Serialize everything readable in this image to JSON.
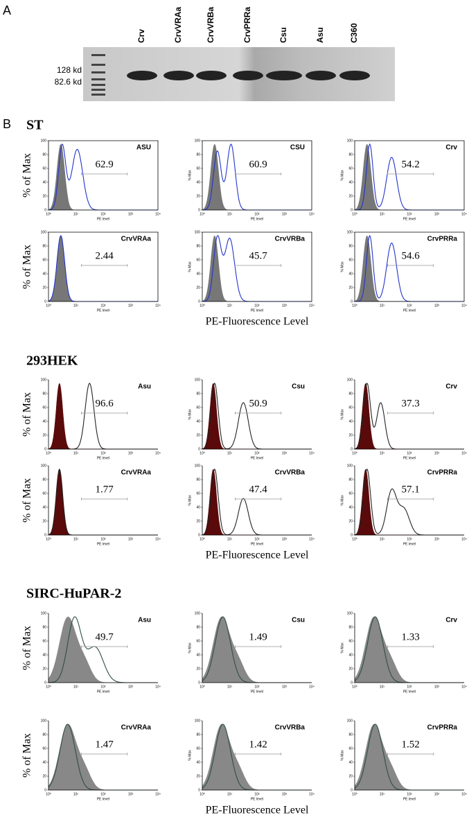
{
  "panel_a": {
    "label": "A",
    "lanes": [
      "Crv",
      "CrvVRAa",
      "CrvVRBa",
      "CrvPRRa",
      "Csu",
      "Asu",
      "C360"
    ],
    "markers": [
      "128 kd",
      "82.6 kd"
    ]
  },
  "panel_b": {
    "label": "B",
    "y_axis_title": "% of Max",
    "x_axis_title": "PE-Fluorescence Level",
    "small_y_title": "% Max",
    "small_x_title": "PE level",
    "yticks": [
      0,
      20,
      40,
      60,
      80,
      100
    ],
    "xticks": [
      "10⁰",
      "10¹",
      "10²",
      "10³",
      "10⁴"
    ],
    "groups": [
      {
        "name": "ST",
        "panels": [
          {
            "sample": "ASU",
            "percent": 62.9
          },
          {
            "sample": "CSU",
            "percent": 60.9
          },
          {
            "sample": "Crv",
            "percent": 54.2
          },
          {
            "sample": "CrvVRAa",
            "percent": 2.44
          },
          {
            "sample": "CrvVRBa",
            "percent": 45.7
          },
          {
            "sample": "CrvPRRa",
            "percent": 54.6
          }
        ]
      },
      {
        "name": "293HEK",
        "panels": [
          {
            "sample": "Asu",
            "percent": 96.6
          },
          {
            "sample": "Csu",
            "percent": 50.9
          },
          {
            "sample": "Crv",
            "percent": 37.3
          },
          {
            "sample": "CrvVRAa",
            "percent": 1.77
          },
          {
            "sample": "CrvVRBa",
            "percent": 47.4
          },
          {
            "sample": "CrvPRRa",
            "percent": 57.1
          }
        ]
      },
      {
        "name": "SIRC-HuPAR-2",
        "panels": [
          {
            "sample": "Asu",
            "percent": 49.7
          },
          {
            "sample": "Csu",
            "percent": 1.49
          },
          {
            "sample": "Crv",
            "percent": 1.33
          },
          {
            "sample": "CrvVRAa",
            "percent": 1.47
          },
          {
            "sample": "CrvVRBa",
            "percent": 1.42
          },
          {
            "sample": "CrvPRRa",
            "percent": 1.52
          }
        ]
      }
    ]
  }
}
